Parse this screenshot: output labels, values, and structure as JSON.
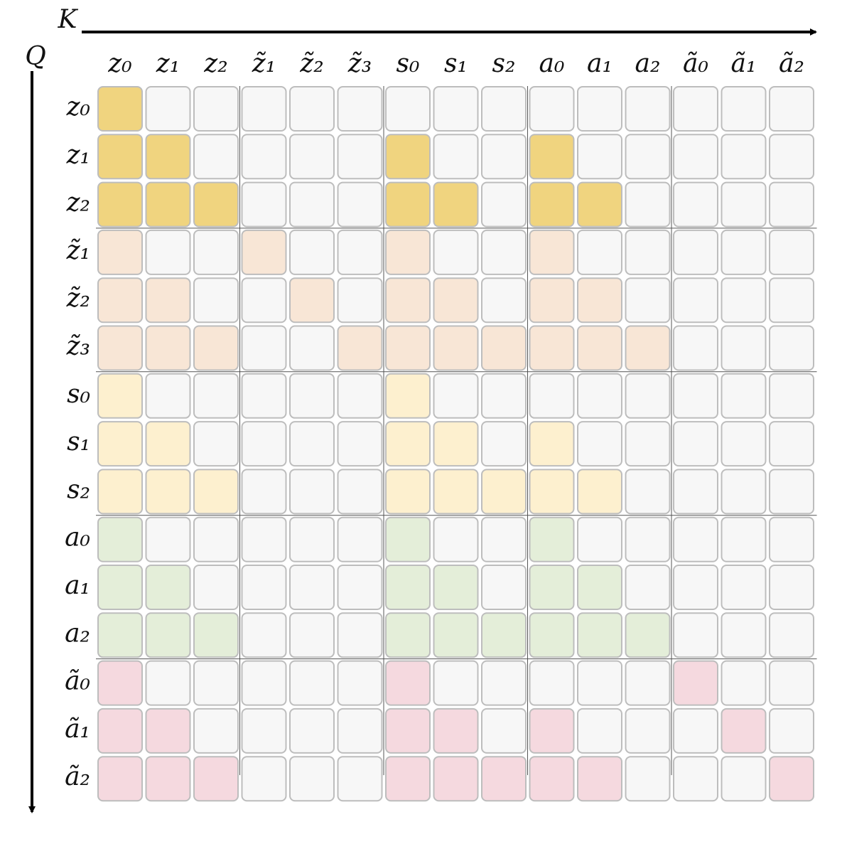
{
  "axes": {
    "k": "K",
    "q": "Q"
  },
  "columns": [
    "z₀",
    "z₁",
    "z₂",
    "z̃₁",
    "z̃₂",
    "z̃₃",
    "s₀",
    "s₁",
    "s₂",
    "a₀",
    "a₁",
    "a₂",
    "ã₀",
    "ã₁",
    "ã₂"
  ],
  "empty_color": "#f7f7f7",
  "rows": [
    {
      "label": "z₀",
      "color": "#f0d47f",
      "mask": [
        1,
        0,
        0,
        0,
        0,
        0,
        0,
        0,
        0,
        0,
        0,
        0,
        0,
        0,
        0
      ]
    },
    {
      "label": "z₁",
      "color": "#f0d47f",
      "mask": [
        1,
        1,
        0,
        0,
        0,
        0,
        1,
        0,
        0,
        1,
        0,
        0,
        0,
        0,
        0
      ]
    },
    {
      "label": "z₂",
      "color": "#f0d47f",
      "mask": [
        1,
        1,
        1,
        0,
        0,
        0,
        1,
        1,
        0,
        1,
        1,
        0,
        0,
        0,
        0
      ]
    },
    {
      "label": "z̃₁",
      "color": "#f8e6d6",
      "mask": [
        1,
        0,
        0,
        1,
        0,
        0,
        1,
        0,
        0,
        1,
        0,
        0,
        0,
        0,
        0
      ]
    },
    {
      "label": "z̃₂",
      "color": "#f8e6d6",
      "mask": [
        1,
        1,
        0,
        0,
        1,
        0,
        1,
        1,
        0,
        1,
        1,
        0,
        0,
        0,
        0
      ]
    },
    {
      "label": "z̃₃",
      "color": "#f8e6d6",
      "mask": [
        1,
        1,
        1,
        0,
        0,
        1,
        1,
        1,
        1,
        1,
        1,
        1,
        0,
        0,
        0
      ]
    },
    {
      "label": "s₀",
      "color": "#fdf0cf",
      "mask": [
        1,
        0,
        0,
        0,
        0,
        0,
        1,
        0,
        0,
        0,
        0,
        0,
        0,
        0,
        0
      ]
    },
    {
      "label": "s₁",
      "color": "#fdf0cf",
      "mask": [
        1,
        1,
        0,
        0,
        0,
        0,
        1,
        1,
        0,
        1,
        0,
        0,
        0,
        0,
        0
      ]
    },
    {
      "label": "s₂",
      "color": "#fdf0cf",
      "mask": [
        1,
        1,
        1,
        0,
        0,
        0,
        1,
        1,
        1,
        1,
        1,
        0,
        0,
        0,
        0
      ]
    },
    {
      "label": "a₀",
      "color": "#e4eed9",
      "mask": [
        1,
        0,
        0,
        0,
        0,
        0,
        1,
        0,
        0,
        1,
        0,
        0,
        0,
        0,
        0
      ]
    },
    {
      "label": "a₁",
      "color": "#e4eed9",
      "mask": [
        1,
        1,
        0,
        0,
        0,
        0,
        1,
        1,
        0,
        1,
        1,
        0,
        0,
        0,
        0
      ]
    },
    {
      "label": "a₂",
      "color": "#e4eed9",
      "mask": [
        1,
        1,
        1,
        0,
        0,
        0,
        1,
        1,
        1,
        1,
        1,
        1,
        0,
        0,
        0
      ]
    },
    {
      "label": "ã₀",
      "color": "#f5d9df",
      "mask": [
        1,
        0,
        0,
        0,
        0,
        0,
        1,
        0,
        0,
        0,
        0,
        0,
        1,
        0,
        0
      ]
    },
    {
      "label": "ã₁",
      "color": "#f5d9df",
      "mask": [
        1,
        1,
        0,
        0,
        0,
        0,
        1,
        1,
        0,
        1,
        0,
        0,
        0,
        1,
        0
      ]
    },
    {
      "label": "ã₂",
      "color": "#f5d9df",
      "mask": [
        1,
        1,
        1,
        0,
        0,
        0,
        1,
        1,
        1,
        1,
        1,
        0,
        0,
        0,
        1
      ]
    }
  ]
}
